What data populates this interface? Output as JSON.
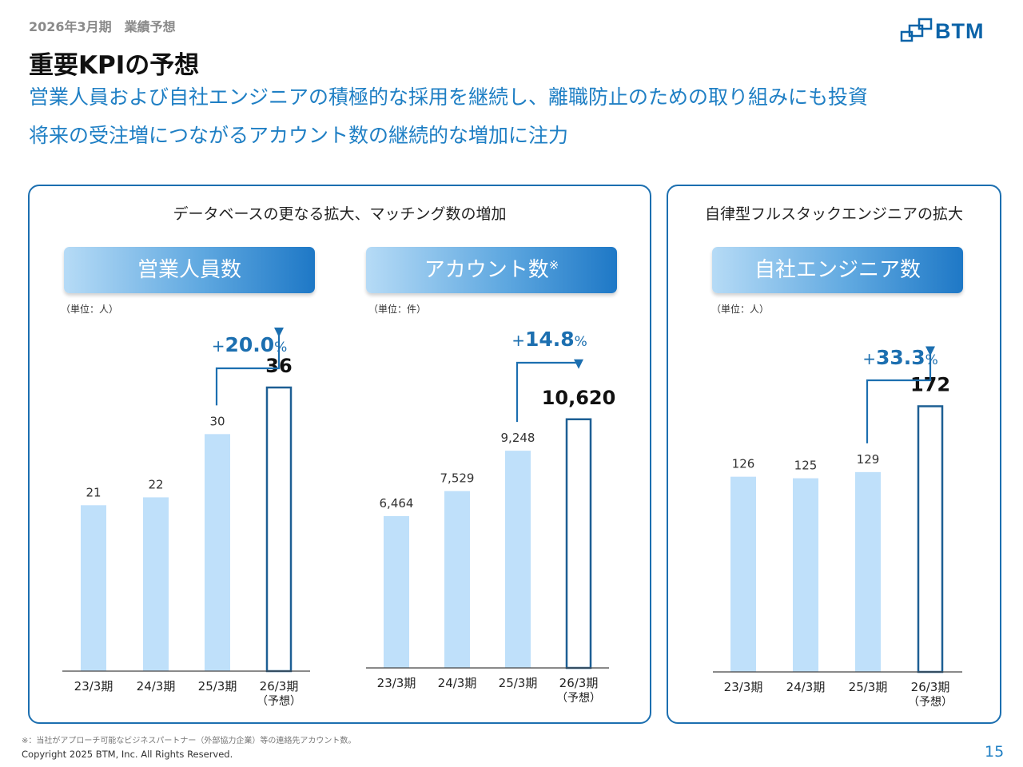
{
  "header": {
    "period": "2026年3月期　業績予想",
    "title": "重要KPIの予想",
    "subtitle_1": "営業人員および自社エンジニアの積極的な採用を継続し、離職防止のための取り組みにも投資",
    "subtitle_2": "将来の受注増につながるアカウント数の継続的な増加に注力"
  },
  "logo": {
    "text": "BTM"
  },
  "panels": {
    "left": {
      "title": "データベースの更なる拡大、マッチング数の増加"
    },
    "right": {
      "title": "自律型フルスタックエンジニアの拡大"
    }
  },
  "colors": {
    "accent": "#1c6fb0",
    "bar_fill": "#bfe0fa",
    "bar_outline": "#1d5f94",
    "subtitle": "#1f7fc4"
  },
  "chart_data": [
    {
      "type": "bar",
      "title": "営業人員数",
      "unit_label": "（単位：人）",
      "categories": [
        "23/3期",
        "24/3期",
        "25/3期",
        "26/3期"
      ],
      "category_notes": [
        "",
        "",
        "",
        "（予想）"
      ],
      "values": [
        21,
        22,
        30,
        36
      ],
      "value_labels": [
        "21",
        "22",
        "30",
        "36"
      ],
      "forecast_index": 3,
      "growth": {
        "sign": "+",
        "value": "20.0",
        "unit": "%"
      },
      "ylim": [
        0,
        45
      ]
    },
    {
      "type": "bar",
      "title": "アカウント数",
      "title_note": "※",
      "unit_label": "（単位：件）",
      "categories": [
        "23/3期",
        "24/3期",
        "25/3期",
        "26/3期"
      ],
      "category_notes": [
        "",
        "",
        "",
        "（予想）"
      ],
      "values": [
        6464,
        7529,
        9248,
        10620
      ],
      "value_labels": [
        "6,464",
        "7,529",
        "9,248",
        "10,620"
      ],
      "forecast_index": 3,
      "growth": {
        "sign": "+",
        "value": "14.8",
        "unit": "%"
      },
      "ylim": [
        0,
        15000
      ]
    },
    {
      "type": "bar",
      "title": "自社エンジニア数",
      "unit_label": "（単位：人）",
      "categories": [
        "23/3期",
        "24/3期",
        "25/3期",
        "26/3期"
      ],
      "category_notes": [
        "",
        "",
        "",
        "（予想）"
      ],
      "values": [
        126,
        125,
        129,
        172
      ],
      "value_labels": [
        "126",
        "125",
        "129",
        "172"
      ],
      "forecast_index": 3,
      "growth": {
        "sign": "+",
        "value": "33.3",
        "unit": "%"
      },
      "ylim": [
        0,
        230
      ]
    }
  ],
  "footer": {
    "footnote": "※：当社がアプローチ可能なビジネスパートナー（外部協力企業）等の連絡先アカウント数。",
    "copyright": "Copyright 2025 BTM, Inc. All Rights Reserved.",
    "page_number": "15"
  }
}
